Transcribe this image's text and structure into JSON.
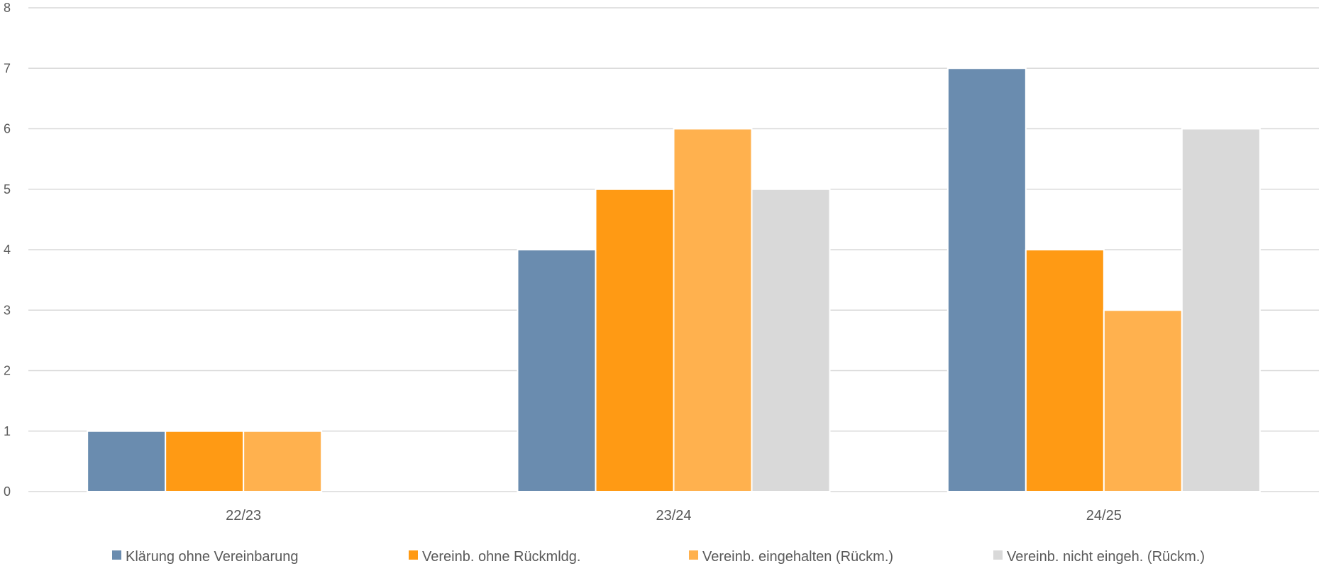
{
  "chart_data": {
    "type": "bar",
    "title": "",
    "xlabel": "",
    "ylabel": "",
    "categories": [
      "22/23",
      "23/24",
      "24/25"
    ],
    "ylim": [
      0,
      8
    ],
    "yticks": [
      0,
      1,
      2,
      3,
      4,
      5,
      6,
      7,
      8
    ],
    "grid": true,
    "legend_position": "bottom",
    "series": [
      {
        "name": "Klärung ohne Vereinbarung",
        "color": "#6a8caf",
        "values": [
          1,
          4,
          7
        ]
      },
      {
        "name": "Vereinb. ohne Rückmldg.",
        "color": "#ff9a14",
        "values": [
          1,
          5,
          4
        ]
      },
      {
        "name": "Vereinb. eingehalten (Rückm.)",
        "color": "#ffb14e",
        "values": [
          1,
          6,
          3
        ]
      },
      {
        "name": "Vereinb. nicht eingeh. (Rückm.)",
        "color": "#d9d9d9",
        "values": [
          null,
          5,
          6
        ]
      }
    ]
  }
}
